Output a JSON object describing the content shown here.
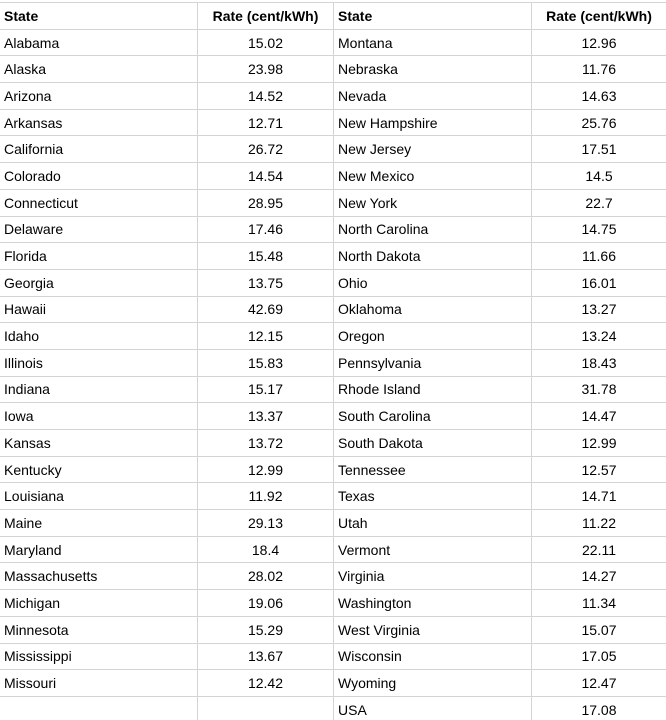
{
  "header": {
    "state_left": "State",
    "rate_left": "Rate (cent/kWh)",
    "state_right": "State",
    "rate_right": "Rate (cent/kWh)"
  },
  "rows": [
    {
      "left_state": "Alabama",
      "left_rate": "15.02",
      "right_state": "Montana",
      "right_rate": "12.96"
    },
    {
      "left_state": "Alaska",
      "left_rate": "23.98",
      "right_state": "Nebraska",
      "right_rate": "11.76"
    },
    {
      "left_state": "Arizona",
      "left_rate": "14.52",
      "right_state": "Nevada",
      "right_rate": "14.63"
    },
    {
      "left_state": "Arkansas",
      "left_rate": "12.71",
      "right_state": "New Hampshire",
      "right_rate": "25.76"
    },
    {
      "left_state": "California",
      "left_rate": "26.72",
      "right_state": "New Jersey",
      "right_rate": "17.51"
    },
    {
      "left_state": "Colorado",
      "left_rate": "14.54",
      "right_state": "New Mexico",
      "right_rate": "14.5"
    },
    {
      "left_state": "Connecticut",
      "left_rate": "28.95",
      "right_state": "New York",
      "right_rate": "22.7"
    },
    {
      "left_state": "Delaware",
      "left_rate": "17.46",
      "right_state": "North Carolina",
      "right_rate": "14.75"
    },
    {
      "left_state": "Florida",
      "left_rate": "15.48",
      "right_state": "North Dakota",
      "right_rate": "11.66"
    },
    {
      "left_state": "Georgia",
      "left_rate": "13.75",
      "right_state": "Ohio",
      "right_rate": "16.01"
    },
    {
      "left_state": "Hawaii",
      "left_rate": "42.69",
      "right_state": "Oklahoma",
      "right_rate": "13.27"
    },
    {
      "left_state": "Idaho",
      "left_rate": "12.15",
      "right_state": "Oregon",
      "right_rate": "13.24"
    },
    {
      "left_state": "Illinois",
      "left_rate": "15.83",
      "right_state": "Pennsylvania",
      "right_rate": "18.43"
    },
    {
      "left_state": "Indiana",
      "left_rate": "15.17",
      "right_state": "Rhode Island",
      "right_rate": "31.78"
    },
    {
      "left_state": "Iowa",
      "left_rate": "13.37",
      "right_state": "South Carolina",
      "right_rate": "14.47"
    },
    {
      "left_state": "Kansas",
      "left_rate": "13.72",
      "right_state": "South Dakota",
      "right_rate": "12.99"
    },
    {
      "left_state": "Kentucky",
      "left_rate": "12.99",
      "right_state": "Tennessee",
      "right_rate": "12.57"
    },
    {
      "left_state": "Louisiana",
      "left_rate": "11.92",
      "right_state": "Texas",
      "right_rate": "14.71"
    },
    {
      "left_state": "Maine",
      "left_rate": "29.13",
      "right_state": "Utah",
      "right_rate": "11.22"
    },
    {
      "left_state": "Maryland",
      "left_rate": "18.4",
      "right_state": "Vermont",
      "right_rate": "22.11"
    },
    {
      "left_state": "Massachusetts",
      "left_rate": "28.02",
      "right_state": "Virginia",
      "right_rate": "14.27"
    },
    {
      "left_state": "Michigan",
      "left_rate": "19.06",
      "right_state": "Washington",
      "right_rate": "11.34"
    },
    {
      "left_state": "Minnesota",
      "left_rate": "15.29",
      "right_state": "West Virginia",
      "right_rate": "15.07"
    },
    {
      "left_state": "Mississippi",
      "left_rate": "13.67",
      "right_state": "Wisconsin",
      "right_rate": "17.05"
    },
    {
      "left_state": "Missouri",
      "left_rate": "12.42",
      "right_state": "Wyoming",
      "right_rate": "12.47"
    },
    {
      "left_state": "",
      "left_rate": "",
      "right_state": "USA",
      "right_rate": "17.08"
    }
  ]
}
